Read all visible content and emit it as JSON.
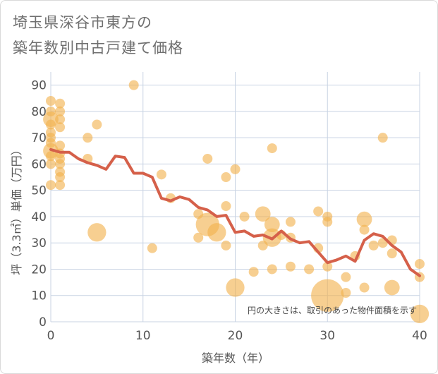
{
  "title_lines": [
    "埼玉県深谷市東方の",
    "築年数別中古戸建て価格"
  ],
  "chart_data": {
    "type": "scatter",
    "title": "埼玉県深谷市東方の築年数別中古戸建て価格",
    "xlabel": "築年数（年）",
    "ylabel": "坪（3.3㎡）単価（万円）",
    "xlim": [
      0,
      40
    ],
    "ylim": [
      0,
      95
    ],
    "xticks": [
      0,
      10,
      20,
      30,
      40
    ],
    "yticks": [
      0,
      10,
      20,
      30,
      40,
      50,
      60,
      70,
      80,
      90
    ],
    "grid": true,
    "annotation": "円の大きさは、取引のあった物件面積を示す",
    "colors": {
      "bubble": "#f2b24e",
      "line": "#d5604a",
      "grid": "#c8d3e3",
      "plot_bg": "#ffffff"
    },
    "bubbles": [
      {
        "x": 0,
        "y": 84,
        "s": 1
      },
      {
        "x": 0,
        "y": 80,
        "s": 1
      },
      {
        "x": 0,
        "y": 77,
        "s": 2
      },
      {
        "x": 0,
        "y": 75,
        "s": 1
      },
      {
        "x": 0,
        "y": 72,
        "s": 1
      },
      {
        "x": 0,
        "y": 70,
        "s": 1
      },
      {
        "x": 0,
        "y": 68,
        "s": 1
      },
      {
        "x": 0,
        "y": 65,
        "s": 2
      },
      {
        "x": 0,
        "y": 63,
        "s": 1
      },
      {
        "x": 0,
        "y": 60,
        "s": 1
      },
      {
        "x": 0,
        "y": 52,
        "s": 1
      },
      {
        "x": 1,
        "y": 83,
        "s": 1
      },
      {
        "x": 1,
        "y": 80,
        "s": 1
      },
      {
        "x": 1,
        "y": 77,
        "s": 1
      },
      {
        "x": 1,
        "y": 74,
        "s": 1
      },
      {
        "x": 1,
        "y": 67,
        "s": 1
      },
      {
        "x": 1,
        "y": 64,
        "s": 1
      },
      {
        "x": 1,
        "y": 62,
        "s": 1
      },
      {
        "x": 1,
        "y": 60,
        "s": 1
      },
      {
        "x": 1,
        "y": 57,
        "s": 1
      },
      {
        "x": 1,
        "y": 55,
        "s": 1
      },
      {
        "x": 1,
        "y": 52,
        "s": 1
      },
      {
        "x": 4,
        "y": 70,
        "s": 1
      },
      {
        "x": 4,
        "y": 62,
        "s": 1
      },
      {
        "x": 5,
        "y": 75,
        "s": 1
      },
      {
        "x": 5,
        "y": 34,
        "s": 3
      },
      {
        "x": 9,
        "y": 90,
        "s": 1
      },
      {
        "x": 11,
        "y": 28,
        "s": 1
      },
      {
        "x": 12,
        "y": 56,
        "s": 1
      },
      {
        "x": 13,
        "y": 47,
        "s": 1
      },
      {
        "x": 16,
        "y": 41,
        "s": 1
      },
      {
        "x": 16,
        "y": 32,
        "s": 1
      },
      {
        "x": 17,
        "y": 62,
        "s": 1
      },
      {
        "x": 17,
        "y": 37,
        "s": 5
      },
      {
        "x": 18,
        "y": 34,
        "s": 3
      },
      {
        "x": 19,
        "y": 55,
        "s": 1
      },
      {
        "x": 19,
        "y": 44,
        "s": 1
      },
      {
        "x": 19,
        "y": 29,
        "s": 1
      },
      {
        "x": 20,
        "y": 58,
        "s": 1
      },
      {
        "x": 20,
        "y": 13,
        "s": 3
      },
      {
        "x": 21,
        "y": 40,
        "s": 1
      },
      {
        "x": 22,
        "y": 19,
        "s": 1
      },
      {
        "x": 23,
        "y": 41,
        "s": 2
      },
      {
        "x": 23,
        "y": 29,
        "s": 1
      },
      {
        "x": 24,
        "y": 66,
        "s": 1
      },
      {
        "x": 24,
        "y": 37,
        "s": 2
      },
      {
        "x": 24,
        "y": 32,
        "s": 3
      },
      {
        "x": 24,
        "y": 20,
        "s": 1
      },
      {
        "x": 25,
        "y": 33,
        "s": 1
      },
      {
        "x": 26,
        "y": 38,
        "s": 1
      },
      {
        "x": 26,
        "y": 32,
        "s": 1
      },
      {
        "x": 26,
        "y": 21,
        "s": 1
      },
      {
        "x": 28,
        "y": 20,
        "s": 1
      },
      {
        "x": 29,
        "y": 42,
        "s": 1
      },
      {
        "x": 29,
        "y": 28,
        "s": 1
      },
      {
        "x": 30,
        "y": 40,
        "s": 1
      },
      {
        "x": 30,
        "y": 38,
        "s": 1
      },
      {
        "x": 30,
        "y": 21,
        "s": 1
      },
      {
        "x": 30,
        "y": 10,
        "s": 10
      },
      {
        "x": 32,
        "y": 17,
        "s": 1
      },
      {
        "x": 32,
        "y": 11,
        "s": 1
      },
      {
        "x": 33,
        "y": 25,
        "s": 1
      },
      {
        "x": 34,
        "y": 39,
        "s": 2
      },
      {
        "x": 34,
        "y": 35,
        "s": 1
      },
      {
        "x": 34,
        "y": 13,
        "s": 1
      },
      {
        "x": 35,
        "y": 29,
        "s": 1
      },
      {
        "x": 36,
        "y": 70,
        "s": 1
      },
      {
        "x": 36,
        "y": 30,
        "s": 1
      },
      {
        "x": 37,
        "y": 31,
        "s": 1
      },
      {
        "x": 37,
        "y": 26,
        "s": 1
      },
      {
        "x": 37,
        "y": 13,
        "s": 2
      },
      {
        "x": 40,
        "y": 22,
        "s": 1
      },
      {
        "x": 40,
        "y": 17,
        "s": 1
      },
      {
        "x": 40,
        "y": 3,
        "s": 3
      }
    ],
    "line": {
      "x": [
        0,
        1,
        2,
        3,
        4,
        5,
        6,
        7,
        8,
        9,
        10,
        11,
        12,
        13,
        14,
        15,
        16,
        17,
        18,
        19,
        20,
        21,
        22,
        23,
        24,
        25,
        26,
        27,
        28,
        29,
        30,
        31,
        32,
        33,
        34,
        35,
        36,
        37,
        38,
        39,
        40
      ],
      "y": [
        65.5,
        64.5,
        64.5,
        62,
        60.5,
        59.5,
        58,
        63,
        62.5,
        56.5,
        56.5,
        55,
        47,
        46,
        47.5,
        46.5,
        43.5,
        42.5,
        40,
        40.5,
        34,
        34.5,
        32.5,
        33,
        31.5,
        34.5,
        31.5,
        30,
        30.5,
        26.5,
        22.5,
        23.5,
        25,
        23,
        31,
        33.5,
        32.5,
        29,
        26.5,
        20,
        17.5
      ]
    }
  }
}
